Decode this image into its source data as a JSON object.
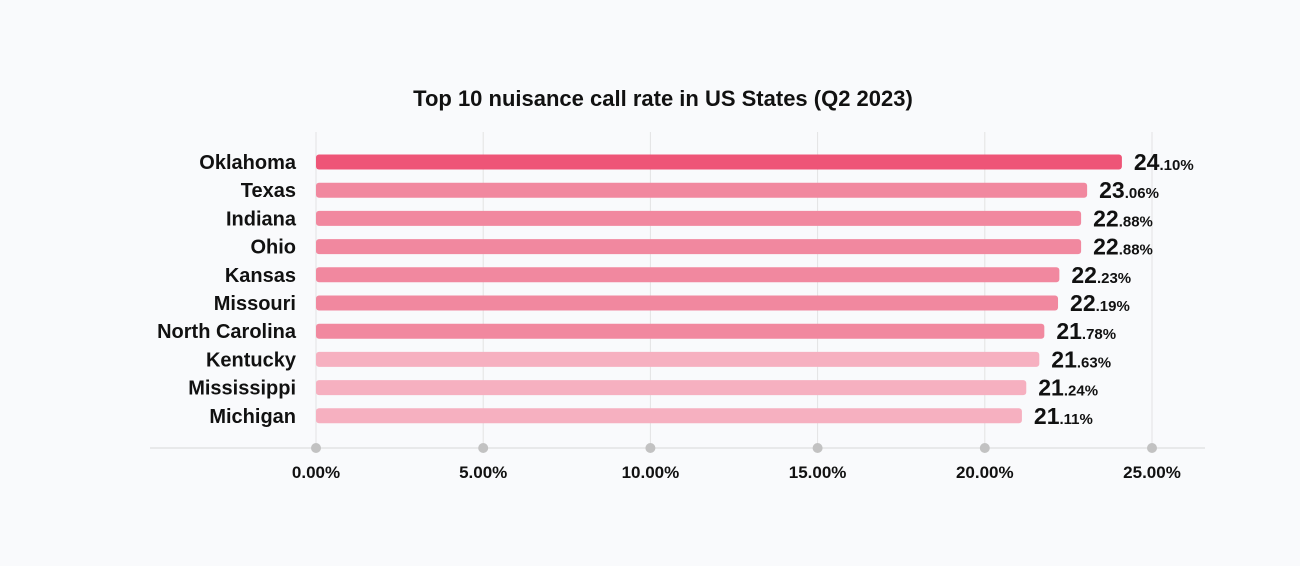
{
  "chart_data": {
    "type": "bar",
    "orientation": "horizontal",
    "title": "Top 10 nuisance call rate in US States (Q2 2023)",
    "xlabel": "",
    "ylabel": "",
    "categories": [
      "Oklahoma",
      "Texas",
      "Indiana",
      "Ohio",
      "Kansas",
      "Missouri",
      "North Carolina",
      "Kentucky",
      "Mississippi",
      "Michigan"
    ],
    "values": [
      24.1,
      23.06,
      22.88,
      22.88,
      22.23,
      22.19,
      21.78,
      21.63,
      21.24,
      21.11
    ],
    "value_labels": [
      {
        "whole": "24",
        "fraction": ".10%"
      },
      {
        "whole": "23",
        "fraction": ".06%"
      },
      {
        "whole": "22",
        "fraction": ".88%"
      },
      {
        "whole": "22",
        "fraction": ".88%"
      },
      {
        "whole": "22",
        "fraction": ".23%"
      },
      {
        "whole": "22",
        "fraction": ".19%"
      },
      {
        "whole": "21",
        "fraction": ".78%"
      },
      {
        "whole": "21",
        "fraction": ".63%"
      },
      {
        "whole": "21",
        "fraction": ".24%"
      },
      {
        "whole": "21",
        "fraction": ".11%"
      }
    ],
    "xlim": [
      0,
      25
    ],
    "x_ticks": [
      0,
      5,
      10,
      15,
      20,
      25
    ],
    "x_tick_labels": [
      "0.00%",
      "5.00%",
      "10.00%",
      "15.00%",
      "20.00%",
      "25.00%"
    ],
    "grid": true,
    "legend": "none",
    "bar_colors": [
      "#ee5577",
      "#f1889f",
      "#f1889f",
      "#f1889f",
      "#f1889f",
      "#f1889f",
      "#f1889f",
      "#f6b0c0",
      "#f6b0c0",
      "#f6b0c0"
    ],
    "colors": {
      "background": "#f9fafc",
      "text": "#111111",
      "grid": "#e3e3e3",
      "axis_dot": "#c2c2c2"
    }
  }
}
